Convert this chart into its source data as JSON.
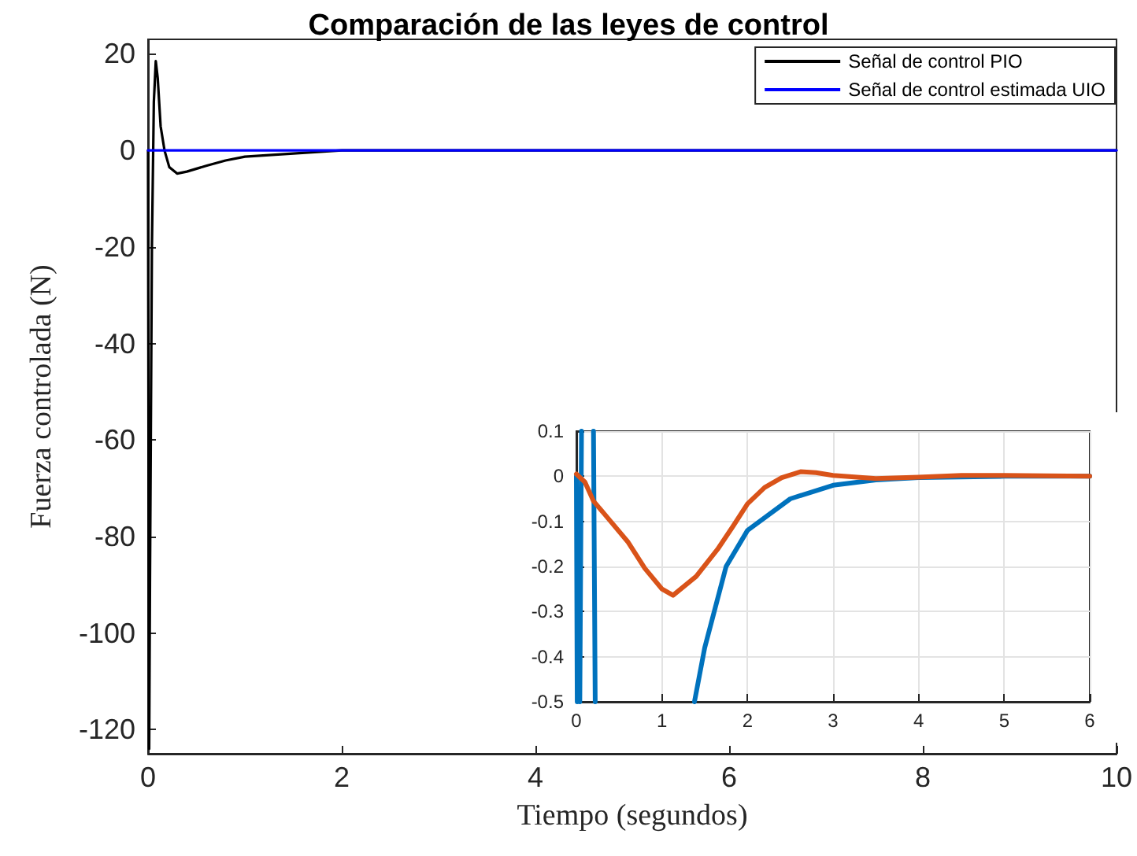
{
  "chart_data": [
    {
      "type": "line",
      "title": "Comparación de las leyes de control",
      "xlabel": "Tiempo (segundos)",
      "ylabel": "Fuerza controlada (N)",
      "xlim": [
        0,
        10
      ],
      "ylim": [
        -125,
        23
      ],
      "xticks": [
        0,
        2,
        4,
        6,
        8,
        10
      ],
      "yticks": [
        -120,
        -100,
        -80,
        -60,
        -40,
        -20,
        0,
        20
      ],
      "grid": false,
      "legend": "top right",
      "marker": "none",
      "series": [
        {
          "name": "Señal de control PIO",
          "color": "#000000",
          "x": [
            0,
            0.005,
            0.012,
            0.02,
            0.04,
            0.06,
            0.08,
            0.1,
            0.13,
            0.17,
            0.22,
            0.3,
            0.4,
            0.6,
            0.8,
            1.0,
            2,
            10
          ],
          "values": [
            0,
            -60,
            -124,
            -90,
            -20,
            10,
            18.5,
            15,
            5,
            0,
            -3.5,
            -4.8,
            -4.4,
            -3.2,
            -2.1,
            -1.3,
            0,
            0
          ]
        },
        {
          "name": "Señal de control estimada UIO",
          "color": "#0000ff",
          "x": [
            0,
            10
          ],
          "values": [
            0,
            0
          ]
        }
      ]
    },
    {
      "type": "line",
      "xlim": [
        0,
        6
      ],
      "ylim": [
        -0.5,
        0.1
      ],
      "xticks": [
        0,
        1,
        2,
        3,
        4,
        5,
        6
      ],
      "yticks": [
        -0.5,
        -0.4,
        -0.3,
        -0.2,
        -0.1,
        0,
        0.1
      ],
      "grid": true,
      "legend": false,
      "marker": "none",
      "series": [
        {
          "color": "#0072bd",
          "x": [
            0,
            0.01,
            0.02,
            0.04,
            0.06,
            0.1,
            0.2,
            0.22,
            0.5,
            1.38,
            1.5,
            1.75,
            2,
            2.5,
            3,
            3.5,
            4,
            5,
            6
          ],
          "values": [
            0,
            -0.5,
            null,
            -0.5,
            0.1,
            null,
            0.1,
            -0.5,
            null,
            -0.5,
            -0.38,
            -0.2,
            -0.12,
            -0.05,
            -0.02,
            -0.008,
            -0.003,
            0,
            0
          ]
        },
        {
          "color": "#d95319",
          "x": [
            0,
            0.1,
            0.2,
            0.4,
            0.6,
            0.8,
            1.0,
            1.13,
            1.4,
            1.65,
            1.83,
            2.0,
            2.2,
            2.4,
            2.62,
            2.8,
            3.0,
            3.5,
            4,
            4.5,
            5,
            6
          ],
          "values": [
            0.005,
            -0.013,
            -0.055,
            -0.1,
            -0.145,
            -0.204,
            -0.25,
            -0.264,
            -0.222,
            -0.162,
            -0.111,
            -0.061,
            -0.025,
            -0.003,
            0.01,
            0.008,
            0.002,
            -0.005,
            -0.002,
            0.002,
            0.002,
            0
          ]
        }
      ]
    }
  ]
}
